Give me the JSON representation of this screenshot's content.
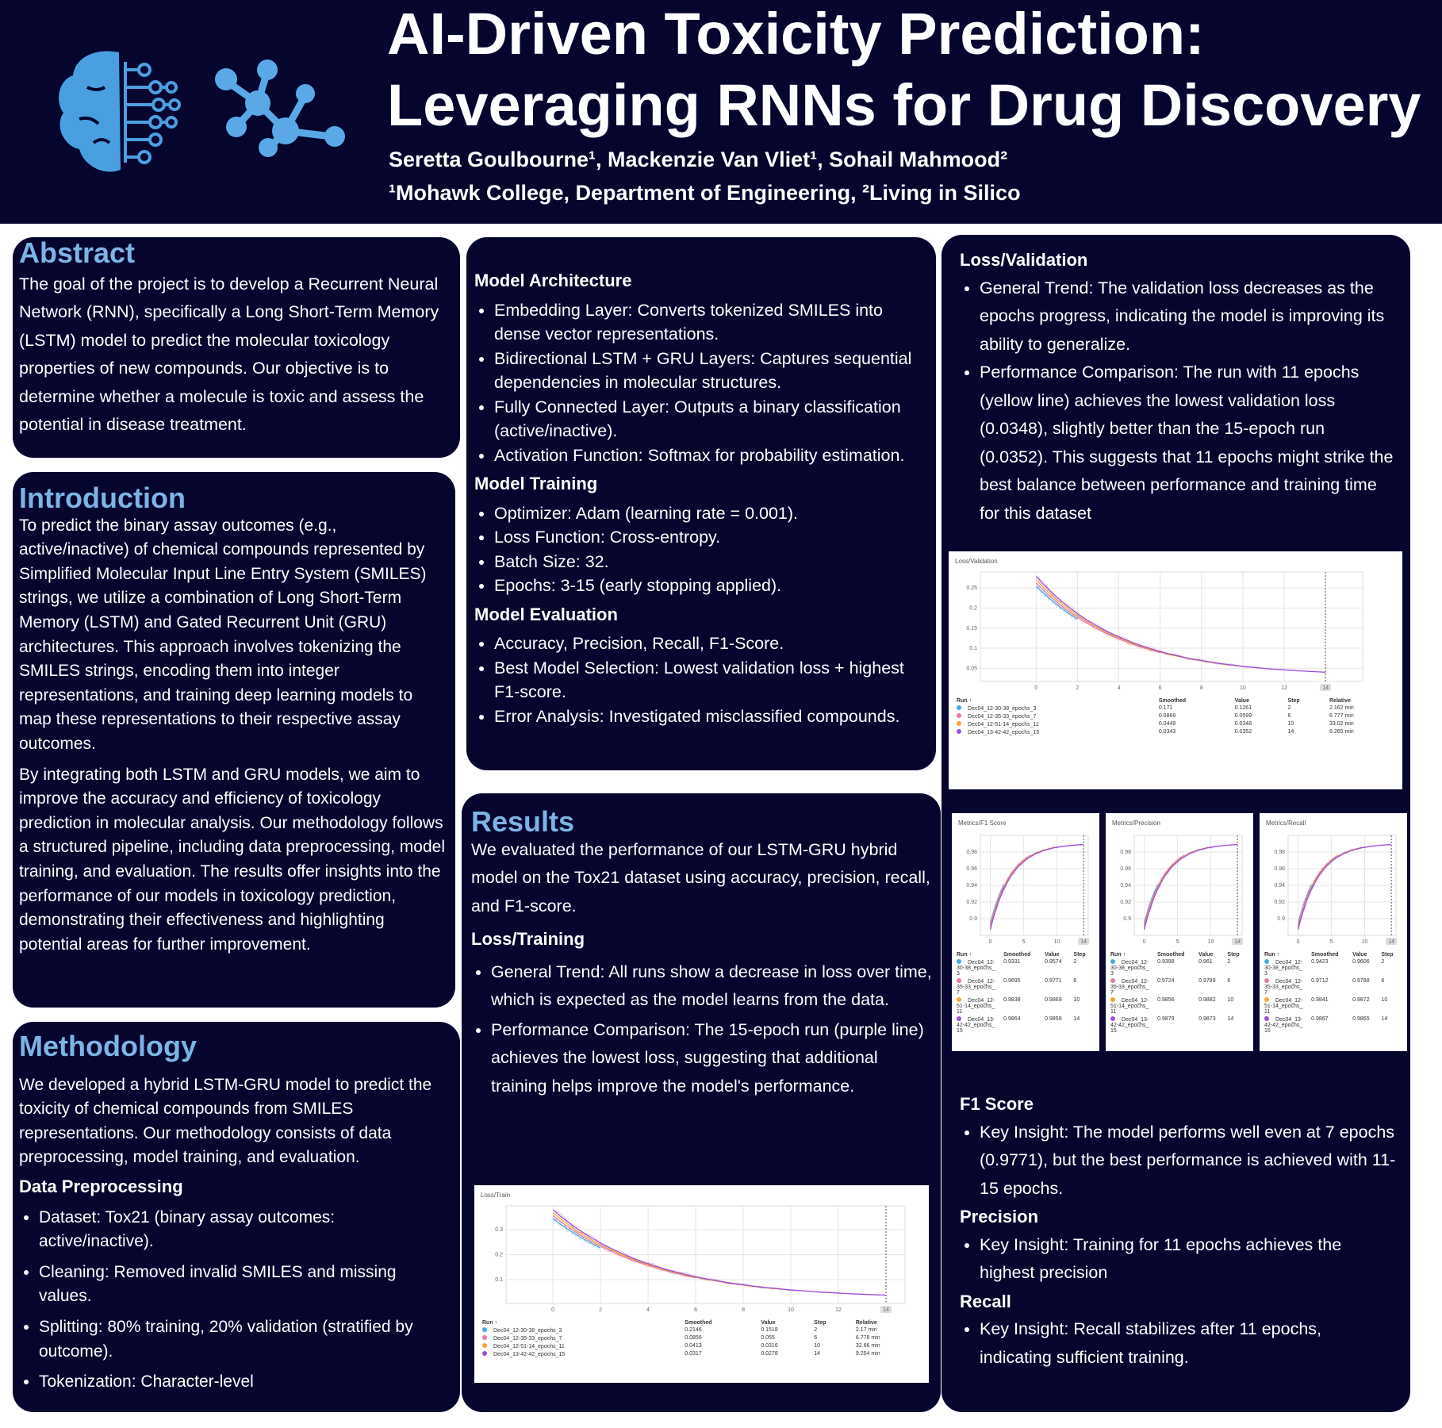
{
  "header": {
    "title_line1": "AI-Driven Toxicity Prediction:",
    "title_line2": "Leveraging RNNs for Drug Discovery",
    "authors": "Seretta Goulbourne¹, Mackenzie Van Vliet¹, Sohail Mahmood²",
    "affiliations": "¹Mohawk College, Department of Engineering, ²Living in Silico"
  },
  "abstract": {
    "heading": "Abstract",
    "text": "The goal of the project is to develop a Recurrent Neural Network (RNN), specifically a Long Short-Term Memory (LSTM) model to predict the molecular toxicology properties of new compounds. Our objective is to determine whether a molecule is toxic and assess the potential in disease treatment."
  },
  "introduction": {
    "heading": "Introduction",
    "paragraphs": [
      "To predict the binary assay outcomes (e.g., active/inactive) of chemical compounds represented by Simplified Molecular Input Line Entry System (SMILES) strings, we utilize a combination of Long Short-Term Memory (LSTM) and Gated Recurrent Unit (GRU) architectures. This approach involves tokenizing the SMILES strings, encoding them into integer representations, and training deep learning models to map these representations to their respective assay outcomes.",
      "By integrating both LSTM and GRU models, we aim to improve the accuracy and efficiency of toxicology prediction in molecular analysis. Our methodology follows a structured pipeline, including data preprocessing, model training, and evaluation. The results offer insights into the performance of our models in toxicology prediction, demonstrating their effectiveness and highlighting potential areas for further improvement."
    ]
  },
  "methodology": {
    "heading": "Methodology",
    "text": "We developed a hybrid LSTM-GRU model to predict the toxicity of chemical compounds from SMILES representations. Our methodology consists of data preprocessing, model training, and evaluation.",
    "subheading": "Data Preprocessing",
    "items": [
      "Dataset: Tox21 (binary assay outcomes: active/inactive).",
      "Cleaning: Removed invalid SMILES and missing values.",
      "Splitting: 80% training, 20% validation (stratified by outcome).",
      "Tokenization: Character-level"
    ]
  },
  "model": {
    "sections": [
      {
        "heading": "Model Architecture",
        "items": [
          "Embedding Layer: Converts tokenized SMILES into dense vector representations.",
          "Bidirectional LSTM + GRU Layers: Captures sequential dependencies in molecular structures.",
          "Fully Connected Layer: Outputs a binary classification (active/inactive).",
          "Activation Function: Softmax for probability estimation."
        ]
      },
      {
        "heading": "Model Training",
        "items": [
          "Optimizer: Adam (learning rate = 0.001).",
          "Loss Function: Cross-entropy.",
          "Batch Size: 32.",
          "Epochs: 3-15 (early stopping applied)."
        ]
      },
      {
        "heading": "Model Evaluation",
        "items": [
          "Accuracy, Precision, Recall, F1-Score.",
          "Best Model Selection: Lowest validation loss + highest F1-score.",
          "Error Analysis: Investigated misclassified compounds."
        ]
      }
    ]
  },
  "results": {
    "heading": "Results",
    "text": "We evaluated the performance of our LSTM-GRU hybrid model on the Tox21 dataset using accuracy, precision, recall, and F1-score.",
    "loss_training": {
      "heading": "Loss/Training",
      "items": [
        "General Trend: All runs show a decrease in loss over time, which is expected as the model learns from the data.",
        "Performance Comparison: The 15-epoch run (purple line) achieves the lowest loss, suggesting that additional training helps improve the model's performance."
      ]
    },
    "loss_validation": {
      "heading": "Loss/Validation",
      "items": [
        "General Trend: The validation loss decreases as the epochs progress, indicating the model is improving its ability to generalize.",
        "Performance Comparison: The run with 11 epochs (yellow line) achieves the lowest validation loss (0.0348), slightly better than the 15-epoch run (0.0352). This suggests that 11 epochs might strike the best balance between performance and training time for this dataset"
      ]
    },
    "f1_score": {
      "heading": "F1 Score",
      "items": [
        "Key Insight: The model performs well even at 7 epochs (0.9771), but the best performance is achieved with 11-15 epochs."
      ]
    },
    "precision": {
      "heading": "Precision",
      "items": [
        "Key Insight: Training for 11 epochs achieves the highest precision"
      ]
    },
    "recall": {
      "heading": "Recall",
      "items": [
        "Key Insight: Recall stabilizes after 11 epochs, indicating sufficient training."
      ]
    }
  },
  "charts": {
    "loss_validation": {
      "title": "Loss/Validation",
      "xlim": [
        -2.7,
        15.8
      ],
      "ylim": [
        0.017,
        0.29
      ],
      "xticks": [
        0,
        2,
        4,
        6,
        8,
        10,
        12
      ],
      "yticks": [
        0.05,
        0.1,
        0.15,
        0.2,
        0.25
      ],
      "marker": 14,
      "columns": [
        "Run ↑",
        "Smoothed",
        "Value",
        "Step",
        "Relative"
      ],
      "rows": [
        [
          "Dec04_12-30-38_epochs_3",
          "0.171",
          "0.1261",
          "2",
          "2.162 min"
        ],
        [
          "Dec04_12-35-33_epochs_7",
          "0.0869",
          "0.0599",
          "6",
          "6.777 min"
        ],
        [
          "Dec04_12-51-14_epochs_11",
          "0.0449",
          "0.0348",
          "10",
          "33.02 min"
        ],
        [
          "Dec04_13-42-42_epochs_15",
          "0.0343",
          "0.0352",
          "14",
          "9.265 min"
        ]
      ]
    },
    "loss_train": {
      "title": "Loss/Train",
      "xlim": [
        -1.97,
        14.8
      ],
      "ylim": [
        0.005,
        0.395
      ],
      "xticks": [
        0,
        2,
        4,
        6,
        8,
        10,
        12
      ],
      "yticks": [
        0.1,
        0.2,
        0.3
      ],
      "marker": 14,
      "columns": [
        "Run ↑",
        "Smoothed",
        "Value",
        "Step",
        "Relative"
      ],
      "rows": [
        [
          "Dec04_12-30-38_epochs_3",
          "0.2146",
          "0.1518",
          "2",
          "2.17 min"
        ],
        [
          "Dec04_12-35-33_epochs_7",
          "0.0856",
          "0.055",
          "6",
          "6.778 min"
        ],
        [
          "Dec04_12-51-14_epochs_11",
          "0.0413",
          "0.0316",
          "10",
          "32.66 min"
        ],
        [
          "Dec04_13-42-42_epochs_15",
          "0.0317",
          "0.0278",
          "14",
          "9.254 min"
        ]
      ]
    },
    "f1": {
      "title": "Metrics/F1 Score",
      "xlim": [
        -1.5,
        14.7
      ],
      "ylim": [
        0.88,
        1.0
      ],
      "xticks": [
        0,
        5,
        10
      ],
      "yticks": [
        0.9,
        0.92,
        0.94,
        0.96,
        0.98
      ],
      "marker": 14,
      "columns": [
        "Run ↑",
        "Smoothed",
        "Value",
        "Step"
      ],
      "rows": [
        [
          "Dec04_12-30-38_epochs_3",
          "0.9331",
          "0.9574",
          "2"
        ],
        [
          "Dec04_12-35-33_epochs_7",
          "0.9695",
          "0.9771",
          "6"
        ],
        [
          "Dec04_12-51-14_epochs_11",
          "0.9838",
          "0.9869",
          "10"
        ],
        [
          "Dec04_13-42-42_epochs_15",
          "0.9864",
          "0.9859",
          "14"
        ]
      ]
    },
    "precision": {
      "title": "Metrics/Precision",
      "xlim": [
        -1.5,
        14.7
      ],
      "ylim": [
        0.88,
        1.0
      ],
      "xticks": [
        0,
        5,
        10
      ],
      "yticks": [
        0.9,
        0.92,
        0.94,
        0.96,
        0.98
      ],
      "marker": 14,
      "columns": [
        "Run ↑",
        "Smoothed",
        "Value",
        "Step"
      ],
      "rows": [
        [
          "Dec04_12-30-38_epochs_3",
          "0.9398",
          "0.961",
          "2"
        ],
        [
          "Dec04_12-35-33_epochs_7",
          "0.9724",
          "0.9789",
          "6"
        ],
        [
          "Dec04_12-51-14_epochs_11",
          "0.9856",
          "0.9882",
          "10"
        ],
        [
          "Dec04_13-42-42_epochs_15",
          "0.9879",
          "0.9873",
          "14"
        ]
      ]
    },
    "recall": {
      "title": "Metrics/Recall",
      "xlim": [
        -1.5,
        14.7
      ],
      "ylim": [
        0.88,
        1.0
      ],
      "xticks": [
        0,
        5,
        10
      ],
      "yticks": [
        0.9,
        0.92,
        0.94,
        0.96,
        0.98
      ],
      "marker": 14,
      "columns": [
        "Run ↑",
        "Smoothed",
        "Value",
        "Step"
      ],
      "rows": [
        [
          "Dec04_12-30-38_epochs_3",
          "0.9423",
          "0.9606",
          "2"
        ],
        [
          "Dec04_12-35-33_epochs_7",
          "0.9712",
          "0.9788",
          "6"
        ],
        [
          "Dec04_12-51-14_epochs_11",
          "0.9841",
          "0.9872",
          "10"
        ],
        [
          "Dec04_13-42-42_epochs_15",
          "0.9867",
          "0.9865",
          "14"
        ]
      ]
    }
  }
}
